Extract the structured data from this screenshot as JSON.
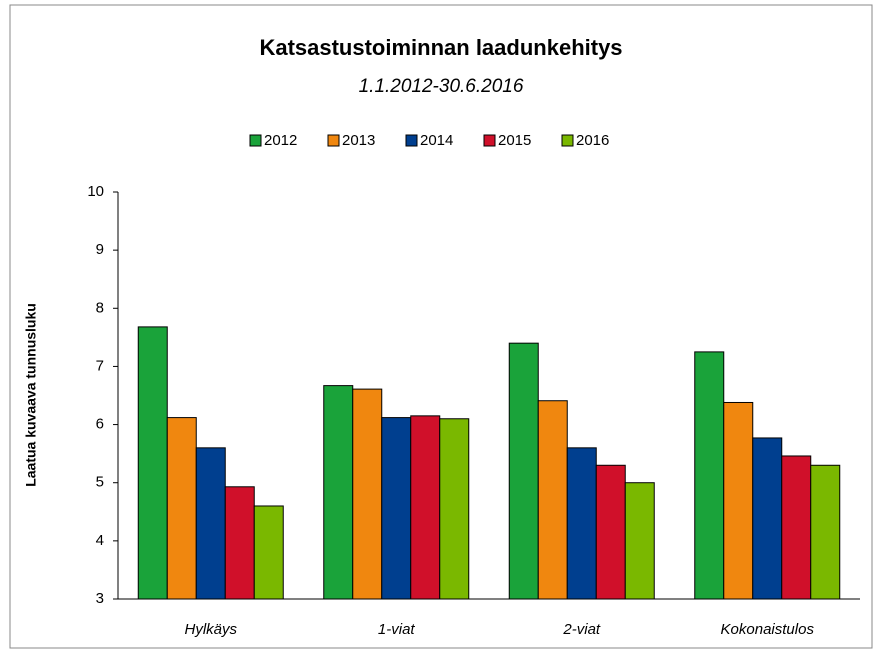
{
  "chart_data": {
    "type": "bar",
    "title": "Katsastustoiminnan laadunkehitys",
    "subtitle": "1.1.2012-30.6.2016",
    "y_axis_label": "Laatua kuvaava tunnusluku",
    "categories": [
      "Hylkäys",
      "1-viat",
      "2-viat",
      "Kokonaistulos"
    ],
    "series": [
      {
        "name": "2012",
        "color": "#1aa33a",
        "values": [
          7.68,
          6.67,
          7.4,
          7.25
        ]
      },
      {
        "name": "2013",
        "color": "#f0870f",
        "values": [
          6.12,
          6.61,
          6.41,
          6.38
        ]
      },
      {
        "name": "2014",
        "color": "#003f8f",
        "values": [
          5.6,
          6.12,
          5.6,
          5.77
        ]
      },
      {
        "name": "2015",
        "color": "#d0102a",
        "values": [
          4.93,
          6.15,
          5.3,
          5.46
        ]
      },
      {
        "name": "2016",
        "color": "#7ab800",
        "values": [
          4.6,
          6.1,
          5.0,
          5.3
        ]
      }
    ],
    "ylim": [
      3,
      10
    ],
    "yticks": [
      3,
      4,
      5,
      6,
      7,
      8,
      9,
      10
    ],
    "legend": "top",
    "grid": false
  }
}
